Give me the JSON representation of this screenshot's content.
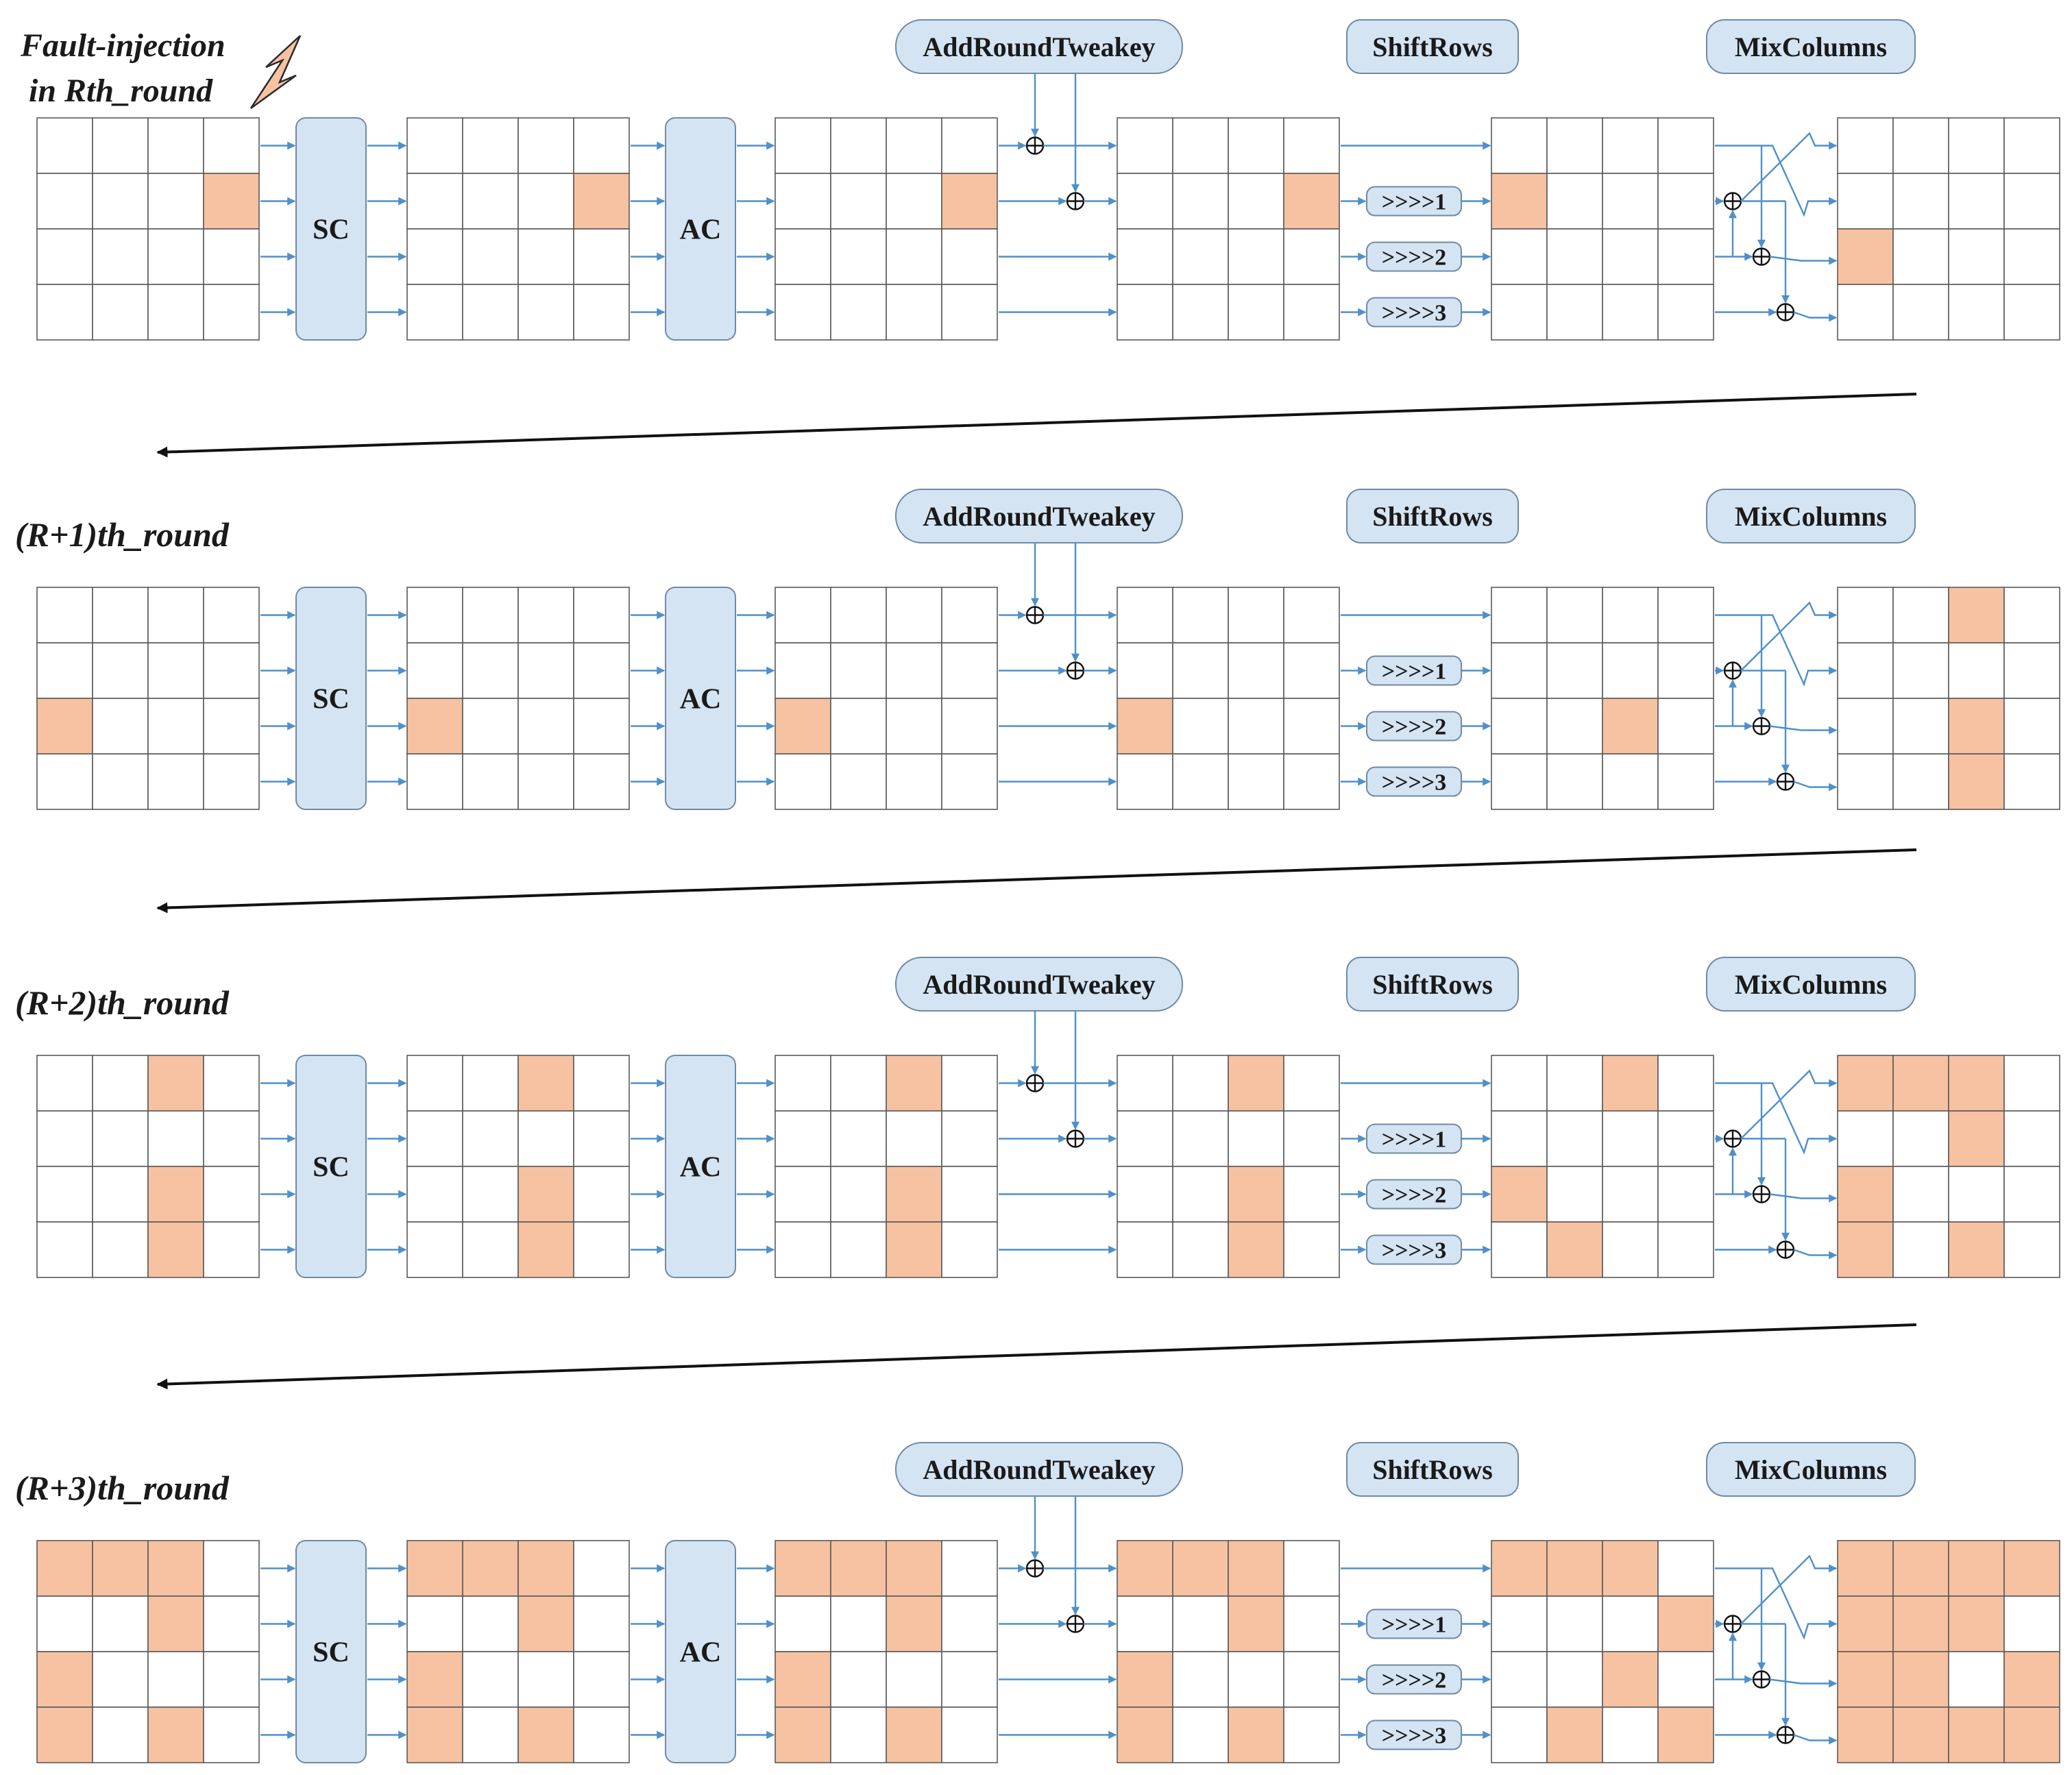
{
  "colors": {
    "fault": "#f6c2a2",
    "box_fill": "#d4e4f3",
    "flow_line": "#4f90c9",
    "grid_line": "#5a5a5a"
  },
  "labels": {
    "fault_line1": "Fault-injection",
    "fault_line2": "in Rth_round",
    "sc": "SC",
    "ac": "AC",
    "add_round_tweakey": "AddRoundTweakey",
    "shift_rows": "ShiftRows",
    "mix_columns": "MixColumns",
    "shift1": ">>>>1",
    "shift2": ">>>>2",
    "shift3": ">>>>3"
  },
  "icons": {
    "fault_injection": "lightning-bolt-icon",
    "xor": "xor-icon"
  },
  "rounds": [
    {
      "title": "",
      "grids": [
        [
          [
            0,
            0,
            0,
            0
          ],
          [
            0,
            0,
            0,
            1
          ],
          [
            0,
            0,
            0,
            0
          ],
          [
            0,
            0,
            0,
            0
          ]
        ],
        [
          [
            0,
            0,
            0,
            0
          ],
          [
            0,
            0,
            0,
            1
          ],
          [
            0,
            0,
            0,
            0
          ],
          [
            0,
            0,
            0,
            0
          ]
        ],
        [
          [
            0,
            0,
            0,
            0
          ],
          [
            0,
            0,
            0,
            1
          ],
          [
            0,
            0,
            0,
            0
          ],
          [
            0,
            0,
            0,
            0
          ]
        ],
        [
          [
            0,
            0,
            0,
            0
          ],
          [
            0,
            0,
            0,
            1
          ],
          [
            0,
            0,
            0,
            0
          ],
          [
            0,
            0,
            0,
            0
          ]
        ],
        [
          [
            0,
            0,
            0,
            0
          ],
          [
            1,
            0,
            0,
            0
          ],
          [
            0,
            0,
            0,
            0
          ],
          [
            0,
            0,
            0,
            0
          ]
        ],
        [
          [
            0,
            0,
            0,
            0
          ],
          [
            0,
            0,
            0,
            0
          ],
          [
            1,
            0,
            0,
            0
          ],
          [
            0,
            0,
            0,
            0
          ]
        ]
      ]
    },
    {
      "title": "(R+1)th_round",
      "grids": [
        [
          [
            0,
            0,
            0,
            0
          ],
          [
            0,
            0,
            0,
            0
          ],
          [
            1,
            0,
            0,
            0
          ],
          [
            0,
            0,
            0,
            0
          ]
        ],
        [
          [
            0,
            0,
            0,
            0
          ],
          [
            0,
            0,
            0,
            0
          ],
          [
            1,
            0,
            0,
            0
          ],
          [
            0,
            0,
            0,
            0
          ]
        ],
        [
          [
            0,
            0,
            0,
            0
          ],
          [
            0,
            0,
            0,
            0
          ],
          [
            1,
            0,
            0,
            0
          ],
          [
            0,
            0,
            0,
            0
          ]
        ],
        [
          [
            0,
            0,
            0,
            0
          ],
          [
            0,
            0,
            0,
            0
          ],
          [
            1,
            0,
            0,
            0
          ],
          [
            0,
            0,
            0,
            0
          ]
        ],
        [
          [
            0,
            0,
            0,
            0
          ],
          [
            0,
            0,
            0,
            0
          ],
          [
            0,
            0,
            1,
            0
          ],
          [
            0,
            0,
            0,
            0
          ]
        ],
        [
          [
            0,
            0,
            1,
            0
          ],
          [
            0,
            0,
            0,
            0
          ],
          [
            0,
            0,
            1,
            0
          ],
          [
            0,
            0,
            1,
            0
          ]
        ]
      ]
    },
    {
      "title": "(R+2)th_round",
      "grids": [
        [
          [
            0,
            0,
            1,
            0
          ],
          [
            0,
            0,
            0,
            0
          ],
          [
            0,
            0,
            1,
            0
          ],
          [
            0,
            0,
            1,
            0
          ]
        ],
        [
          [
            0,
            0,
            1,
            0
          ],
          [
            0,
            0,
            0,
            0
          ],
          [
            0,
            0,
            1,
            0
          ],
          [
            0,
            0,
            1,
            0
          ]
        ],
        [
          [
            0,
            0,
            1,
            0
          ],
          [
            0,
            0,
            0,
            0
          ],
          [
            0,
            0,
            1,
            0
          ],
          [
            0,
            0,
            1,
            0
          ]
        ],
        [
          [
            0,
            0,
            1,
            0
          ],
          [
            0,
            0,
            0,
            0
          ],
          [
            0,
            0,
            1,
            0
          ],
          [
            0,
            0,
            1,
            0
          ]
        ],
        [
          [
            0,
            0,
            1,
            0
          ],
          [
            0,
            0,
            0,
            0
          ],
          [
            1,
            0,
            0,
            0
          ],
          [
            0,
            1,
            0,
            0
          ]
        ],
        [
          [
            1,
            1,
            1,
            0
          ],
          [
            0,
            0,
            1,
            0
          ],
          [
            1,
            0,
            0,
            0
          ],
          [
            1,
            0,
            1,
            0
          ]
        ]
      ]
    },
    {
      "title": "(R+3)th_round",
      "grids": [
        [
          [
            1,
            1,
            1,
            0
          ],
          [
            0,
            0,
            1,
            0
          ],
          [
            1,
            0,
            0,
            0
          ],
          [
            1,
            0,
            1,
            0
          ]
        ],
        [
          [
            1,
            1,
            1,
            0
          ],
          [
            0,
            0,
            1,
            0
          ],
          [
            1,
            0,
            0,
            0
          ],
          [
            1,
            0,
            1,
            0
          ]
        ],
        [
          [
            1,
            1,
            1,
            0
          ],
          [
            0,
            0,
            1,
            0
          ],
          [
            1,
            0,
            0,
            0
          ],
          [
            1,
            0,
            1,
            0
          ]
        ],
        [
          [
            1,
            1,
            1,
            0
          ],
          [
            0,
            0,
            1,
            0
          ],
          [
            1,
            0,
            0,
            0
          ],
          [
            1,
            0,
            1,
            0
          ]
        ],
        [
          [
            1,
            1,
            1,
            0
          ],
          [
            0,
            0,
            0,
            1
          ],
          [
            0,
            0,
            1,
            0
          ],
          [
            0,
            1,
            0,
            1
          ]
        ],
        [
          [
            1,
            1,
            1,
            1
          ],
          [
            1,
            1,
            1,
            0
          ],
          [
            1,
            1,
            0,
            1
          ],
          [
            1,
            1,
            1,
            1
          ]
        ]
      ]
    }
  ]
}
